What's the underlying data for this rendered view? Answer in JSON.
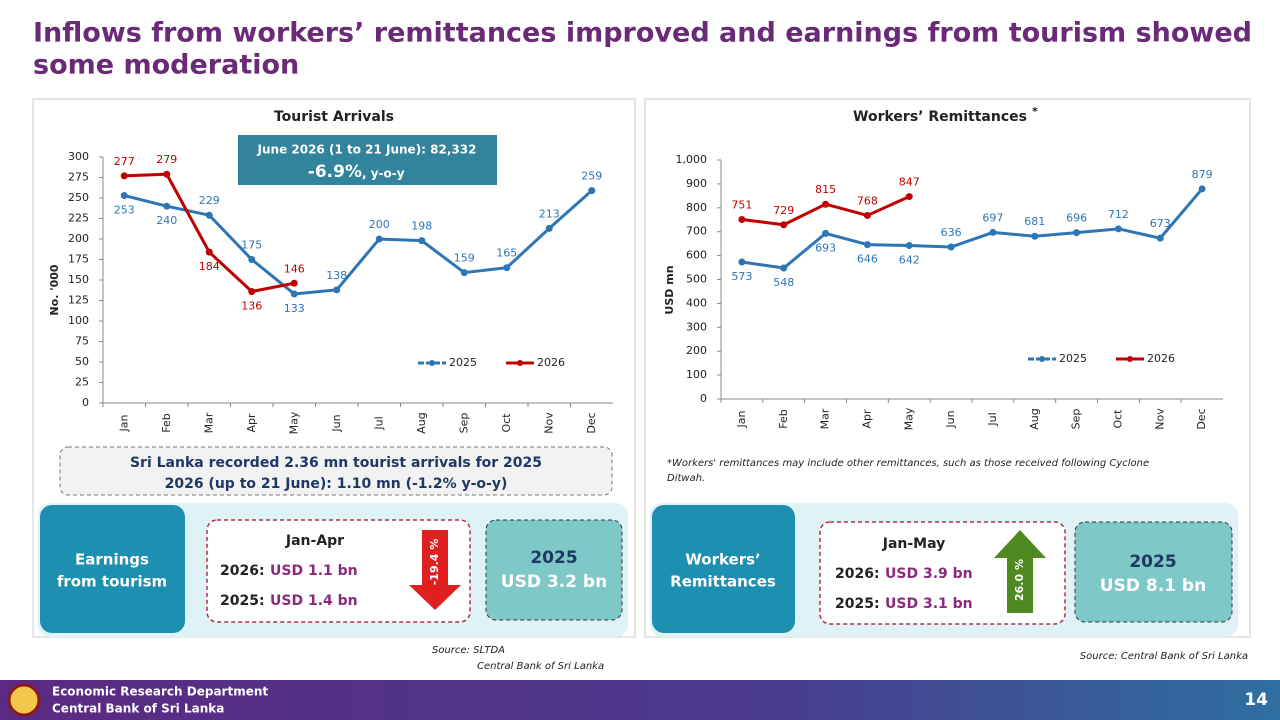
{
  "title_lines": [
    "Inflows from workers’ remittances improved and earnings from tourism showed",
    "some moderation"
  ],
  "chart_data": [
    {
      "type": "line",
      "title": "Tourist Arrivals",
      "ylabel": "No. '000",
      "categories": [
        "Jan",
        "Feb",
        "Mar",
        "Apr",
        "May",
        "Jun",
        "Jul",
        "Aug",
        "Sep",
        "Oct",
        "Nov",
        "Dec"
      ],
      "series": [
        {
          "name": "2025",
          "color": "#2e75b6",
          "values": [
            253,
            240,
            229,
            175,
            133,
            138,
            200,
            198,
            159,
            165,
            213,
            259
          ]
        },
        {
          "name": "2026",
          "color": "#c00000",
          "values": [
            277,
            279,
            184,
            136,
            146,
            null,
            null,
            null,
            null,
            null,
            null,
            null
          ]
        }
      ],
      "ylim": [
        0,
        300
      ],
      "yticks": [
        0,
        25,
        50,
        75,
        100,
        125,
        150,
        175,
        200,
        225,
        250,
        275,
        300
      ],
      "legend": "lower right",
      "annotation": {
        "line1": "June 2026 (1 to 21 June):  82,332",
        "change": "-6.9%",
        "suffix": ", y-o-y"
      }
    },
    {
      "type": "line",
      "title": "Workers’ Remittances",
      "title_mark": "*",
      "ylabel": "USD mn",
      "categories": [
        "Jan",
        "Feb",
        "Mar",
        "Apr",
        "May",
        "Jun",
        "Jul",
        "Aug",
        "Sep",
        "Oct",
        "Nov",
        "Dec"
      ],
      "series": [
        {
          "name": "2025",
          "color": "#2e75b6",
          "values": [
            573,
            548,
            693,
            646,
            642,
            636,
            697,
            681,
            696,
            712,
            673,
            879
          ]
        },
        {
          "name": "2026",
          "color": "#c00000",
          "values": [
            751,
            729,
            815,
            768,
            847,
            null,
            null,
            null,
            null,
            null,
            null,
            null
          ]
        }
      ],
      "ylim": [
        0,
        1000
      ],
      "yticks": [
        0,
        100,
        200,
        300,
        400,
        500,
        600,
        700,
        800,
        900,
        {
          "value": 1000,
          "label": "1,000"
        }
      ],
      "legend": "lower right"
    }
  ],
  "tourism_note": [
    "Sri Lanka recorded 2.36 mn tourist arrivals for 2025",
    "2026 (up to 21 June): 1.10 mn (-1.2% y-o-y)"
  ],
  "remittance_note": [
    "*Workers' remittances may include other remittances, such as those received following Cyclone",
    "Ditwah."
  ],
  "tourism_panel": {
    "label": [
      "Earnings",
      "from tourism"
    ],
    "period": "Jan-Apr",
    "rows": [
      {
        "year": "2026:",
        "value": "USD 1.1 bn"
      },
      {
        "year": "2025:",
        "value": "USD 1.4 bn"
      }
    ],
    "change": "-19.4 %",
    "total_year": "2025",
    "total": "USD 3.2 bn"
  },
  "remittance_panel": {
    "label": [
      "Workers’",
      "Remittances"
    ],
    "period": "Jan-May",
    "rows": [
      {
        "year": "2026:",
        "value": "USD 3.9 bn"
      },
      {
        "year": "2025:",
        "value": "USD 3.1 bn"
      }
    ],
    "change": "26.0 %",
    "total_year": "2025",
    "total": "USD 8.1 bn"
  },
  "sources": {
    "tourism": [
      "Source: SLTDA",
      "Central Bank of Sri Lanka"
    ],
    "remittance": "Source: Central Bank of Sri Lanka"
  },
  "footer": {
    "department": "Economic Research Department",
    "bank": "Central Bank of Sri Lanka",
    "page": "14"
  }
}
